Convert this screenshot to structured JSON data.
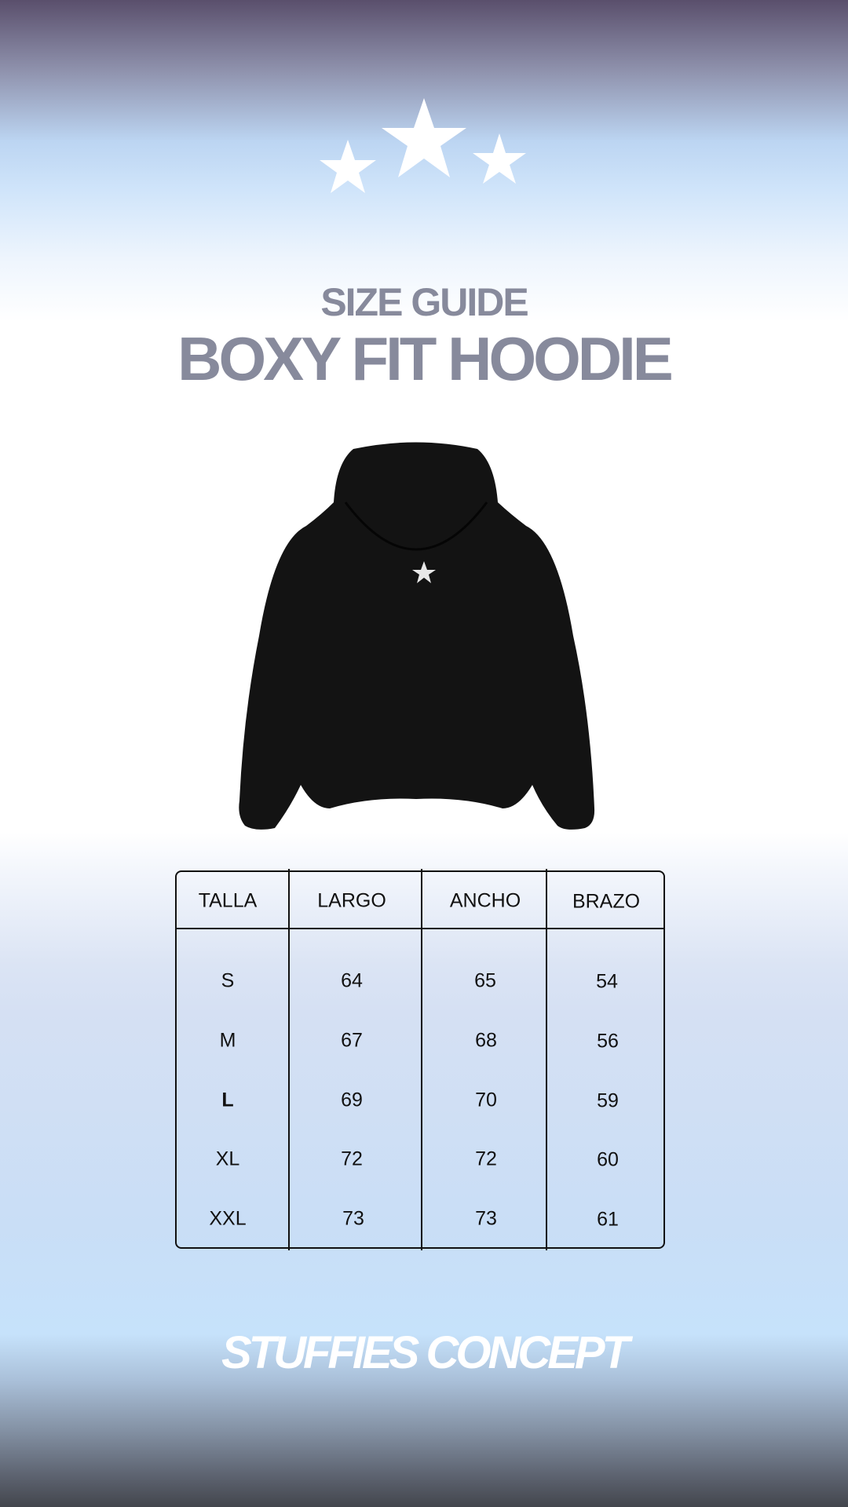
{
  "header": {
    "subtitle": "SIZE GUIDE",
    "title": "BOXY FIT HOODIE"
  },
  "decor": {
    "icons": [
      "star-icon",
      "star-icon",
      "star-icon"
    ],
    "product_image": "black hoodie"
  },
  "size_table": {
    "columns": [
      "TALLA",
      "LARGO",
      "ANCHO",
      "BRAZO"
    ],
    "rows": [
      [
        "S",
        "64",
        "65",
        "54"
      ],
      [
        "M",
        "67",
        "68",
        "56"
      ],
      [
        "L",
        "69",
        "70",
        "59"
      ],
      [
        "XL",
        "72",
        "72",
        "60"
      ],
      [
        "XXL",
        "73",
        "73",
        "61"
      ]
    ],
    "highlighted_row": "L"
  },
  "footer": {
    "brand": "STUFFIES CONCEPT"
  },
  "colors": {
    "title": "#878a9c",
    "top": "#5a4f6c",
    "sky": "#c6e2fb",
    "bottom": "#43464d"
  }
}
